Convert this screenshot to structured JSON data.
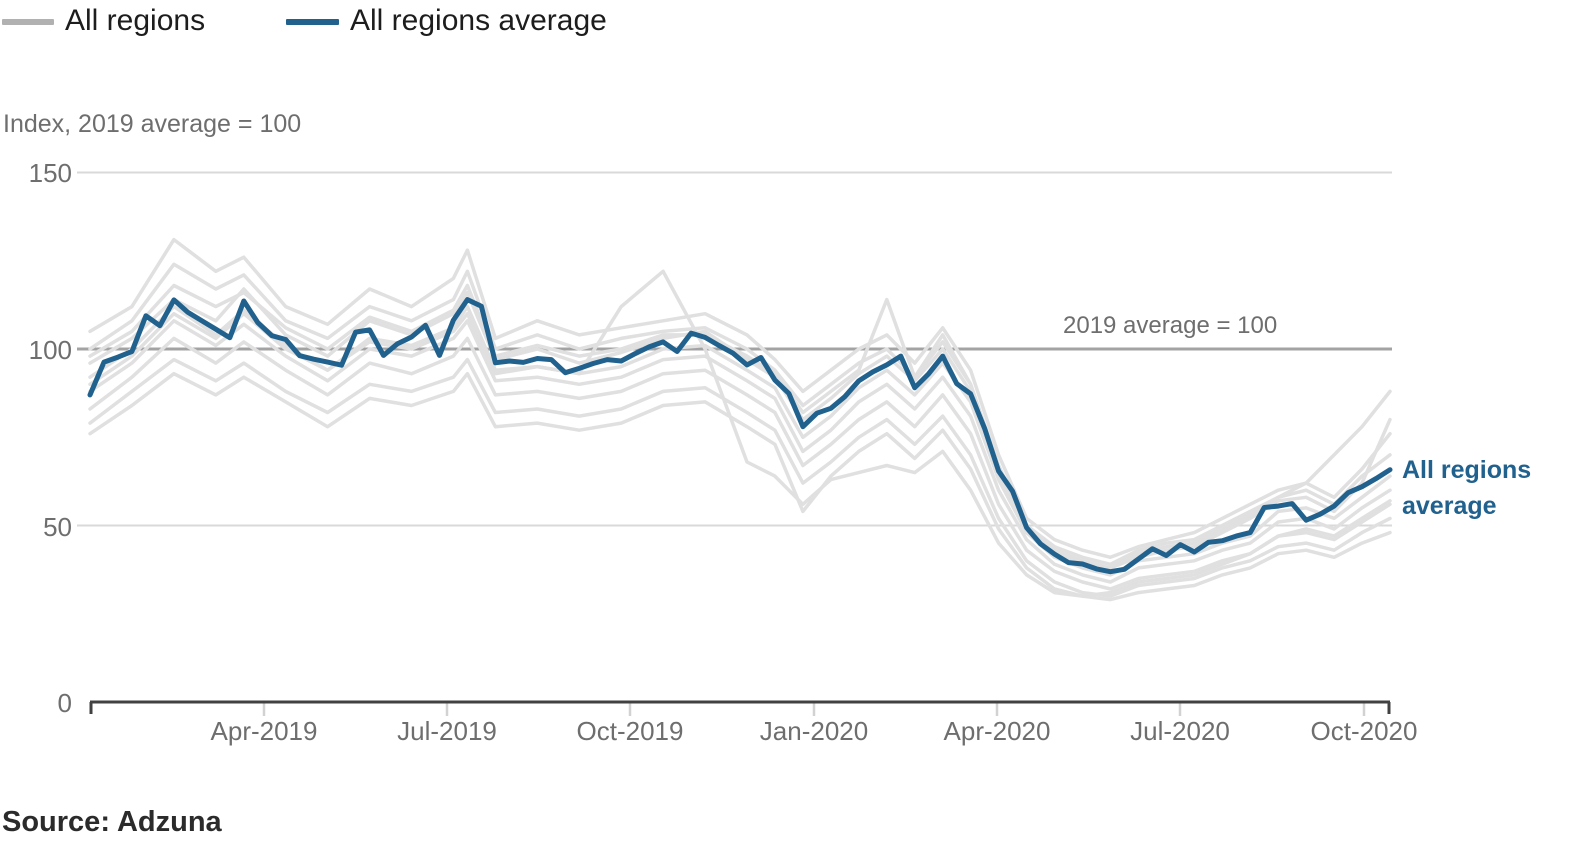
{
  "chart_data": {
    "type": "line",
    "ylabel": "Index, 2019 average = 100",
    "ylim": [
      0,
      150
    ],
    "y_ticks": [
      0,
      50,
      100,
      150
    ],
    "y_tick_labels": [
      "150",
      "100",
      "50",
      "0"
    ],
    "x_tick_labels": [
      "Apr-2019",
      "Jul-2019",
      "Oct-2019",
      "Jan-2020",
      "Apr-2020",
      "Jul-2020",
      "Oct-2020"
    ],
    "x_range_note": "weekly points, Jan 2019 to Oct 2020",
    "grid": "horizontal only",
    "legend_position": "top-left",
    "reference_line": {
      "value": 100,
      "label": "2019 average = 100"
    },
    "legend": [
      {
        "label": "All regions",
        "color": "#b1b1b1"
      },
      {
        "label": "All regions average",
        "color": "#21618e"
      }
    ],
    "end_label": {
      "line1": "All regions",
      "line2": "average"
    },
    "weeks_total": 94,
    "average_series": {
      "name": "All regions average",
      "color": "#21618e",
      "values": [
        87,
        96.3,
        97.7,
        99.3,
        109.4,
        106.6,
        113.9,
        110.4,
        108,
        105.6,
        103.2,
        113.6,
        107.5,
        103.8,
        102.7,
        98.1,
        97.1,
        96.3,
        95.4,
        104.8,
        105.4,
        98.2,
        101.5,
        103.4,
        106.7,
        98.2,
        108.2,
        114,
        112.1,
        96.1,
        96.6,
        96.2,
        97.3,
        97,
        93.3,
        94.5,
        95.9,
        97,
        96.6,
        98.7,
        100.6,
        102,
        99.3,
        104.5,
        103.3,
        101,
        98.8,
        95.5,
        97.6,
        91.2,
        87.4,
        78,
        81.8,
        83.2,
        86.5,
        91,
        93.5,
        95.5,
        98,
        89,
        93,
        98,
        90.2,
        87.3,
        77.5,
        65.4,
        59.7,
        49.4,
        44.8,
        41.9,
        39.5,
        39.1,
        37.7,
        36.9,
        37.6,
        40.5,
        43.4,
        41.5,
        44.6,
        42.5,
        45.2,
        45.7,
        47,
        48,
        55.1,
        55.5,
        56.2,
        51.5,
        53.2,
        55.5,
        59.3,
        61,
        63.3,
        65.8
      ]
    },
    "region_series": {
      "color": "#e0e0e0",
      "anchor_weeks": [
        0,
        3,
        6,
        9,
        11,
        14,
        17,
        20,
        23,
        26,
        27,
        29,
        32,
        35,
        38,
        41,
        44,
        47,
        49,
        51,
        53,
        55,
        57,
        59,
        61,
        63,
        65,
        67,
        69,
        71,
        73,
        75,
        77,
        79,
        81,
        83,
        85,
        87,
        89,
        91,
        93
      ],
      "series": [
        {
          "name": "region-01",
          "values": [
            105,
            112,
            131,
            122,
            126,
            112,
            107,
            117,
            112,
            120,
            128,
            103,
            108,
            104,
            106,
            108,
            110,
            104,
            97,
            88,
            94,
            100,
            104,
            96,
            106,
            94,
            70,
            52,
            46,
            43,
            41,
            44,
            46,
            48,
            52,
            56,
            60,
            62,
            58,
            66,
            76
          ]
        },
        {
          "name": "region-02",
          "values": [
            100,
            108,
            124,
            117,
            121,
            108,
            103,
            112,
            108,
            114,
            122,
            100,
            104,
            100,
            103,
            105,
            106,
            100,
            94,
            84,
            90,
            96,
            100,
            92,
            102,
            90,
            67,
            50,
            44,
            41,
            39,
            43,
            45,
            46,
            50,
            54,
            58,
            60,
            56,
            64,
            70
          ]
        },
        {
          "name": "region-03",
          "values": [
            98,
            105,
            118,
            112,
            116,
            106,
            100,
            109,
            105,
            111,
            118,
            98,
            101,
            98,
            100,
            104,
            104,
            98,
            93,
            82,
            88,
            94,
            114,
            92,
            104,
            90,
            66,
            50,
            43,
            40,
            38,
            42,
            44,
            45,
            49,
            53,
            58,
            62,
            70,
            78,
            88
          ]
        },
        {
          "name": "region-04",
          "values": [
            96,
            103,
            114,
            108,
            117,
            104,
            98,
            108,
            104,
            110,
            116,
            97,
            100,
            96,
            99,
            103,
            105,
            97,
            92,
            80,
            86,
            93,
            98,
            91,
            100,
            88,
            64,
            49,
            42,
            39,
            38,
            41,
            43,
            44,
            48,
            52,
            57,
            58,
            54,
            62,
            80
          ]
        },
        {
          "name": "region-05",
          "values": [
            92,
            100,
            112,
            104,
            111,
            101,
            94,
            103,
            101,
            106,
            112,
            94,
            95,
            93,
            95,
            100,
            101,
            94,
            89,
            75,
            81,
            89,
            94,
            87,
            96,
            85,
            63,
            48,
            41,
            38,
            36,
            40,
            41,
            42,
            45,
            47,
            54,
            55,
            52,
            58,
            64
          ]
        },
        {
          "name": "region-06",
          "values": [
            88,
            96,
            108,
            101,
            107,
            98,
            91,
            100,
            98,
            103,
            108,
            91,
            92,
            90,
            92,
            97,
            98,
            91,
            86,
            71,
            77,
            85,
            90,
            83,
            92,
            81,
            60,
            46,
            39,
            36,
            34,
            38,
            39,
            40,
            43,
            45,
            51,
            52,
            49,
            55,
            60
          ]
        },
        {
          "name": "region-07",
          "values": [
            83,
            92,
            103,
            96,
            102,
            94,
            87,
            96,
            93,
            98,
            103,
            87,
            88,
            86,
            88,
            93,
            94,
            87,
            82,
            67,
            73,
            80,
            85,
            78,
            87,
            76,
            56,
            43,
            37,
            34,
            32,
            35,
            36,
            37,
            40,
            42,
            47,
            48,
            46,
            51,
            56
          ]
        },
        {
          "name": "region-08",
          "values": [
            79,
            88,
            97,
            91,
            96,
            88,
            82,
            90,
            88,
            92,
            97,
            82,
            83,
            81,
            83,
            88,
            89,
            82,
            77,
            62,
            68,
            75,
            80,
            73,
            81,
            70,
            52,
            40,
            34,
            31,
            30,
            33,
            34,
            35,
            38,
            40,
            44,
            45,
            43,
            48,
            52
          ]
        },
        {
          "name": "region-09",
          "values": [
            76,
            84,
            93,
            87,
            92,
            85,
            78,
            86,
            84,
            88,
            93,
            78,
            79,
            77,
            79,
            84,
            85,
            78,
            73,
            54,
            64,
            71,
            76,
            69,
            77,
            66,
            49,
            38,
            32,
            30,
            29,
            31,
            32,
            33,
            36,
            38,
            42,
            43,
            41,
            45,
            48
          ]
        },
        {
          "name": "region-10",
          "values": [
            90,
            98,
            110,
            103,
            110,
            100,
            94,
            102,
            100,
            105,
            110,
            93,
            95,
            93,
            112,
            122,
            100,
            68,
            64,
            56,
            63,
            65,
            67,
            65,
            71,
            60,
            45,
            36,
            31,
            30,
            31,
            34,
            35,
            36,
            39,
            42,
            47,
            49,
            47,
            52,
            57
          ]
        }
      ]
    }
  },
  "source": {
    "text": "Source: Adzuna"
  },
  "colors": {
    "grid_light": "#d9d9d9",
    "grid_ref": "#a3a3a3",
    "axis": "#414141",
    "quarter_tick": "#d2d2d2",
    "text_muted": "#6e6e6e",
    "text_dark": "#1d1d1d",
    "accent_blue": "#21618e",
    "region_gray": "#e0e0e0",
    "legend_gray": "#b1b1b1"
  }
}
